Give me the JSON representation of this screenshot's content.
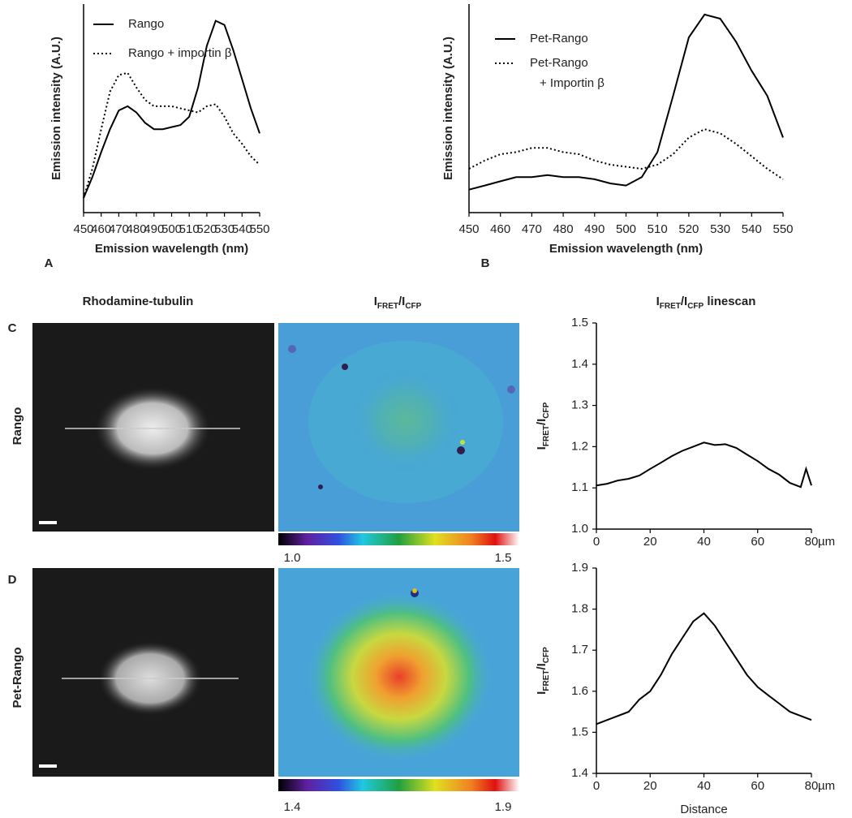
{
  "chart_data": [
    {
      "type": "line",
      "panel": "A",
      "ylabel": "Emission intensity (A.U.)",
      "xlabel": "Emission wavelength (nm)",
      "x": [
        450,
        455,
        460,
        465,
        470,
        475,
        480,
        485,
        490,
        495,
        500,
        505,
        510,
        515,
        520,
        525,
        530,
        535,
        540,
        545,
        550
      ],
      "xlim": [
        450,
        550
      ],
      "xticks": [
        450,
        460,
        470,
        480,
        490,
        500,
        510,
        520,
        530,
        540,
        550
      ],
      "ylim": [
        0,
        100
      ],
      "legend": "upper left",
      "series": [
        {
          "name": "Rango",
          "color": "#000000",
          "style": "solid",
          "values": [
            7,
            17,
            29,
            40,
            49,
            51,
            48,
            43,
            40,
            40,
            41,
            42,
            46,
            60,
            80,
            92,
            90,
            78,
            64,
            50,
            38
          ]
        },
        {
          "name": "Rango + importin β",
          "color": "#000000",
          "style": "dotted",
          "values": [
            7,
            21,
            40,
            58,
            66,
            67,
            60,
            54,
            51,
            51,
            51,
            50,
            49,
            48,
            51,
            52,
            46,
            38,
            33,
            27,
            23
          ]
        }
      ]
    },
    {
      "type": "line",
      "panel": "B",
      "ylabel": "Emission intensity (A.U.)",
      "xlabel": "Emission wavelength (nm)",
      "x": [
        450,
        455,
        460,
        465,
        470,
        475,
        480,
        485,
        490,
        495,
        500,
        505,
        510,
        515,
        520,
        525,
        530,
        535,
        540,
        545,
        550
      ],
      "xlim": [
        450,
        550
      ],
      "xticks": [
        450,
        460,
        470,
        480,
        490,
        500,
        510,
        520,
        530,
        540,
        550
      ],
      "ylim": [
        0,
        100
      ],
      "legend": "upper left",
      "series": [
        {
          "name": "Pet-Rango",
          "color": "#000000",
          "style": "solid",
          "values": [
            11,
            13,
            15,
            17,
            17,
            18,
            17,
            17,
            16,
            14,
            13,
            17,
            29,
            56,
            84,
            95,
            93,
            82,
            68,
            56,
            36
          ]
        },
        {
          "name": "Pet-Rango + Importin β",
          "color": "#000000",
          "style": "dotted",
          "values": [
            21,
            25,
            28,
            29,
            31,
            31,
            29,
            28,
            25,
            23,
            22,
            21,
            23,
            28,
            36,
            40,
            38,
            33,
            27,
            21,
            16
          ]
        }
      ]
    },
    {
      "type": "line",
      "panel": "C",
      "row_label": "Rango",
      "colorbar_labels": [
        "1.0",
        "1.5"
      ],
      "ylabel_parts": [
        "I",
        "FRET",
        "/I",
        "CFP"
      ],
      "xunit": "µm",
      "x": [
        0,
        4,
        8,
        12,
        16,
        20,
        24,
        28,
        32,
        36,
        40,
        44,
        48,
        52,
        56,
        60,
        64,
        68,
        72,
        76,
        78,
        80
      ],
      "xlim": [
        0,
        80
      ],
      "xticks": [
        0,
        20,
        40,
        60,
        80
      ],
      "ylim": [
        1.0,
        1.5
      ],
      "yticks": [
        {
          "value": 1.0,
          "label": "1.0"
        },
        1.1,
        1.2,
        1.3,
        1.4,
        1.5
      ],
      "series": [
        {
          "color": "#000000",
          "style": "solid",
          "values": [
            1.106,
            1.11,
            1.118,
            1.122,
            1.13,
            1.146,
            1.161,
            1.177,
            1.19,
            1.2,
            1.21,
            1.204,
            1.206,
            1.197,
            1.181,
            1.165,
            1.146,
            1.132,
            1.112,
            1.102,
            1.146,
            1.106
          ]
        }
      ]
    },
    {
      "type": "line",
      "panel": "D",
      "row_label": "Pet-Rango",
      "colorbar_labels": [
        "1.4",
        "1.9"
      ],
      "ylabel_parts": [
        "I",
        "FRET",
        "/I",
        "CFP"
      ],
      "xunit": "µm",
      "xlabel": "Distance",
      "x": [
        0,
        4,
        8,
        12,
        16,
        20,
        24,
        28,
        32,
        36,
        40,
        44,
        48,
        52,
        56,
        60,
        64,
        68,
        72,
        76,
        80
      ],
      "xlim": [
        0,
        80
      ],
      "xticks": [
        0,
        20,
        40,
        60,
        80
      ],
      "ylim": [
        1.4,
        1.9
      ],
      "yticks": [
        1.4,
        1.5,
        1.6,
        1.7,
        1.8,
        1.9
      ],
      "series": [
        {
          "color": "#000000",
          "style": "solid",
          "values": [
            1.52,
            1.53,
            1.54,
            1.55,
            1.58,
            1.6,
            1.64,
            1.69,
            1.73,
            1.77,
            1.79,
            1.76,
            1.72,
            1.68,
            1.64,
            1.61,
            1.59,
            1.57,
            1.55,
            1.54,
            1.53
          ]
        }
      ]
    }
  ],
  "column_titles": [
    {
      "parts": [
        "Rhodamine-tubulin"
      ]
    },
    {
      "parts": [
        "I",
        "FRET",
        "/I",
        "CFP"
      ]
    },
    {
      "parts": [
        "I",
        "FRET",
        "/I",
        "CFP",
        " linescan"
      ]
    }
  ]
}
